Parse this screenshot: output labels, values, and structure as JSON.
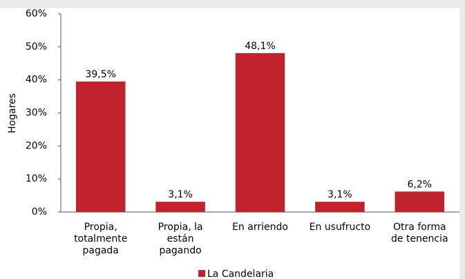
{
  "chart_data": {
    "type": "bar",
    "categories": [
      [
        "Propia,",
        "totalmente",
        "pagada"
      ],
      [
        "Propia, la",
        "están",
        "pagando"
      ],
      [
        "En arriendo"
      ],
      [
        "En usufructo"
      ],
      [
        "Otra forma",
        "de tenencia"
      ]
    ],
    "values": [
      39.5,
      3.1,
      48.1,
      3.1,
      6.2
    ],
    "value_labels": [
      "39,5%",
      "3,1%",
      "48,1%",
      "3,1%",
      "6,2%"
    ],
    "color": "#c0232b",
    "ylabel": "Hogares",
    "legend": "La Candelaria",
    "ylim": [
      0,
      60
    ],
    "yticks": [
      {
        "value": 0,
        "label": "0%"
      },
      {
        "value": 10,
        "label": "10%"
      },
      {
        "value": 20,
        "label": "20%"
      },
      {
        "value": 30,
        "label": "30%"
      },
      {
        "value": 40,
        "label": "40%"
      },
      {
        "value": 50,
        "label": "50%"
      },
      {
        "value": 60,
        "label": "60%"
      }
    ],
    "grid": false
  }
}
